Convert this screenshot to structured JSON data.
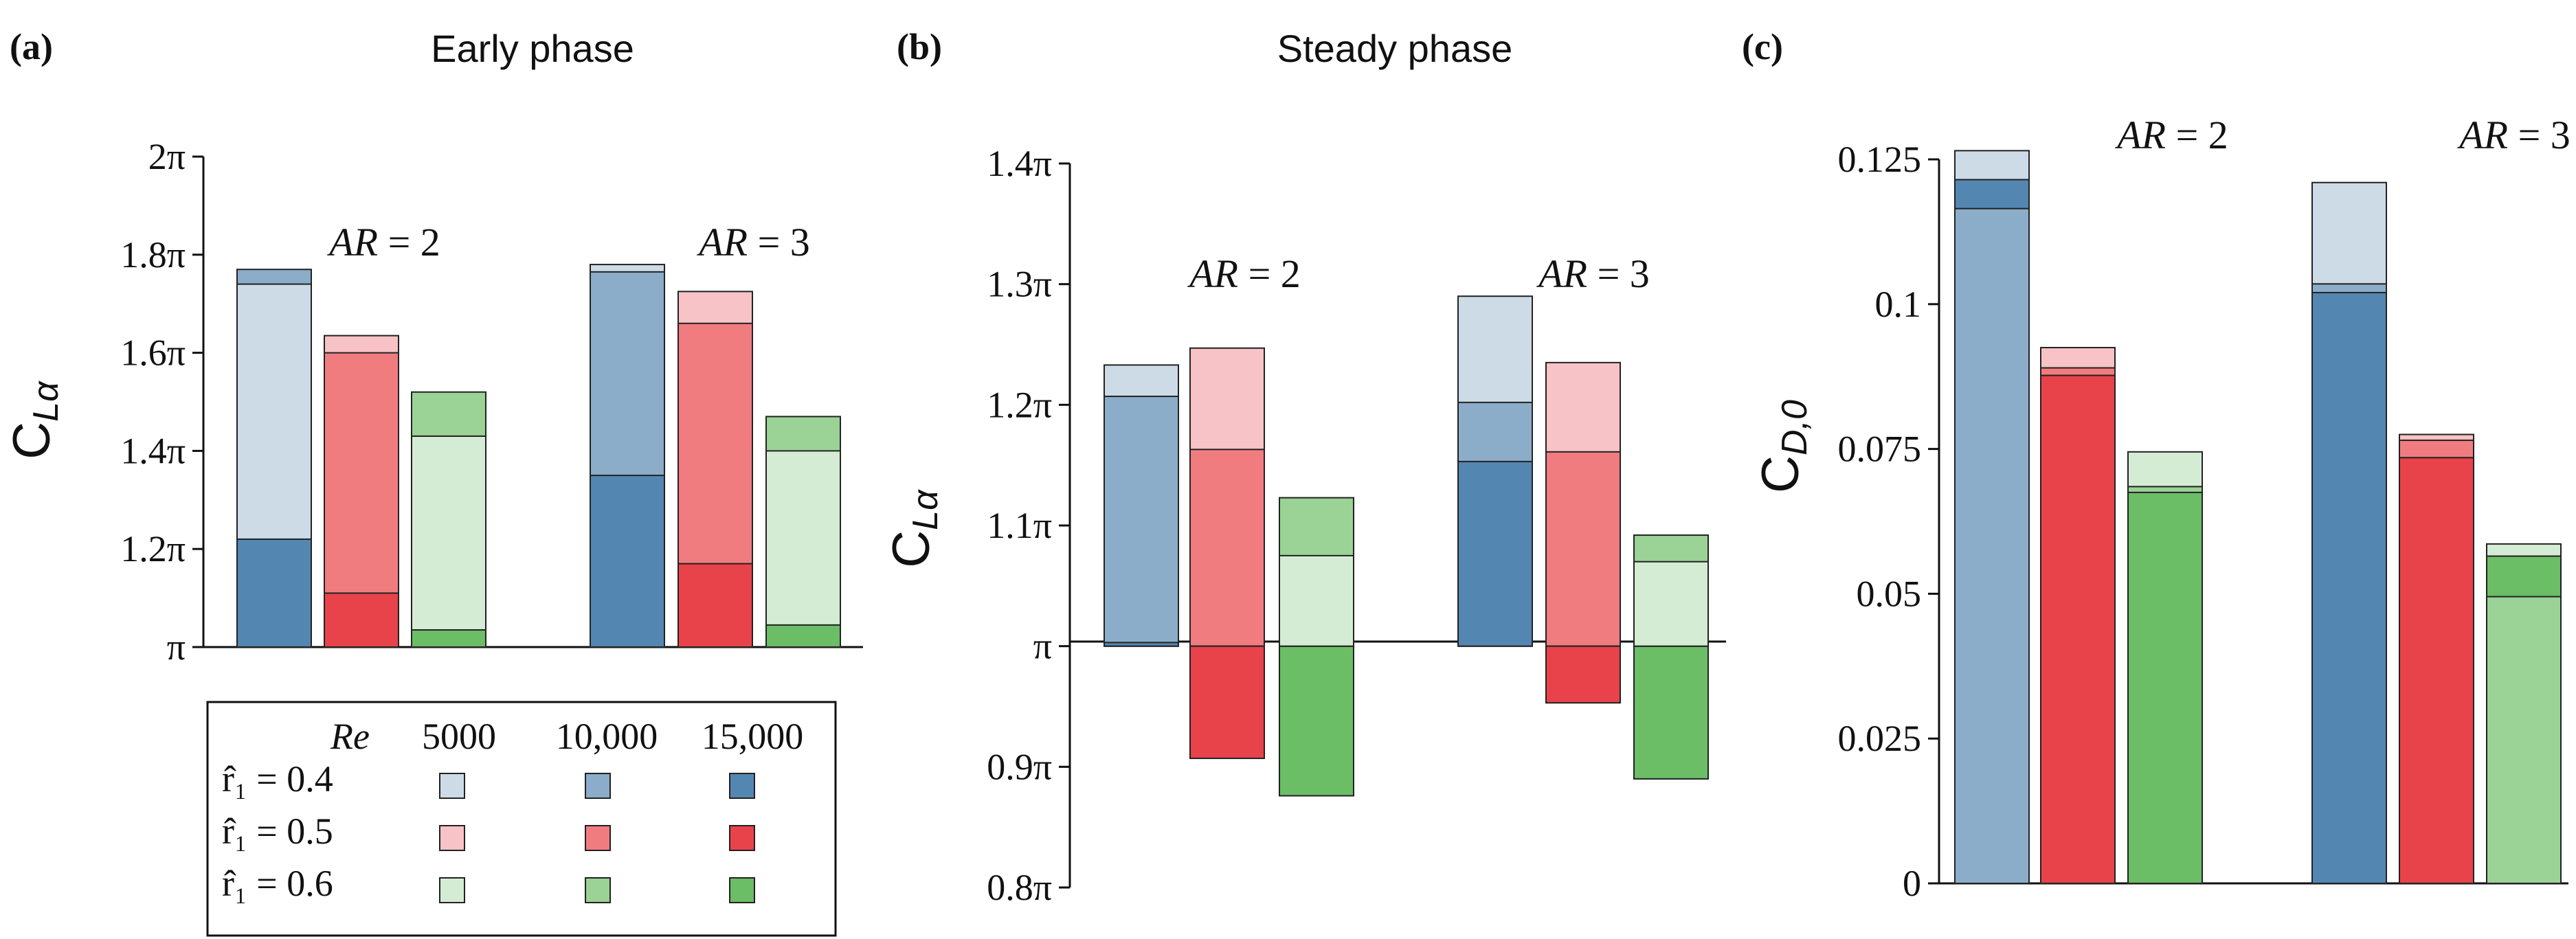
{
  "figure_labels": {
    "a": "(a)",
    "b": "(b)",
    "c": "(c)"
  },
  "legend": {
    "re_label": "Re",
    "columns": [
      "5000",
      "10,000",
      "15,000"
    ],
    "rows": [
      {
        "label": "r̂₁ = 0.4",
        "hue": "blue"
      },
      {
        "label": "r̂₁ = 0.5",
        "hue": "red"
      },
      {
        "label": "r̂₁ = 0.6",
        "hue": "green"
      }
    ]
  },
  "colors": {
    "blue": [
      "#cddbe7",
      "#8badc9",
      "#5486b2"
    ],
    "red": [
      "#f7c3c6",
      "#f07c80",
      "#e8434a"
    ],
    "green": [
      "#d5ecd4",
      "#9bd296",
      "#6bbd66"
    ]
  },
  "chart_data": [
    {
      "type": "bar",
      "panel": "(a)",
      "title": "Early phase",
      "ylabel": "C_Lα",
      "ylim": [
        1.0,
        2.0
      ],
      "yticks": [
        "π",
        "1.2π",
        "1.4π",
        "1.6π",
        "1.8π",
        "2π"
      ],
      "baseline": 1.0,
      "groups": [
        "AR = 2",
        "AR = 3"
      ],
      "series": [
        "r̂₁ = 0.4",
        "r̂₁ = 0.5",
        "r̂₁ = 0.6"
      ],
      "units": "multiples of π",
      "values": [
        [
          {
            "re5000": 1.74,
            "re10000": 1.77,
            "re15000": 1.22
          },
          {
            "re5000": 1.635,
            "re10000": 1.6,
            "re15000": 1.11
          },
          {
            "re5000": 1.43,
            "re10000": 1.52,
            "re15000": 1.035
          }
        ],
        [
          {
            "re5000": 1.78,
            "re10000": 1.765,
            "re15000": 1.35
          },
          {
            "re5000": 1.725,
            "re10000": 1.66,
            "re15000": 1.17
          },
          {
            "re5000": 1.4,
            "re10000": 1.47,
            "re15000": 1.045
          }
        ]
      ]
    },
    {
      "type": "bar",
      "panel": "(b)",
      "title": "Steady phase",
      "ylabel": "C_Lα",
      "ylim": [
        0.8,
        1.4
      ],
      "yticks": [
        "0.8π",
        "0.9π",
        "π",
        "1.1π",
        "1.2π",
        "1.3π",
        "1.4π"
      ],
      "baseline": 1.0,
      "groups": [
        "AR = 2",
        "AR = 3"
      ],
      "series": [
        "r̂₁ = 0.4",
        "r̂₁ = 0.5",
        "r̂₁ = 0.6"
      ],
      "units": "multiples of π",
      "values": [
        [
          {
            "re5000": 1.233,
            "re10000": 1.207,
            "re15000": 1.003
          },
          {
            "re5000": 1.247,
            "re10000": 1.163,
            "re15000": 0.907
          },
          {
            "re5000": 1.075,
            "re10000": 1.123,
            "re15000": 0.876
          }
        ],
        [
          {
            "re5000": 1.29,
            "re10000": 1.202,
            "re15000": 1.153
          },
          {
            "re5000": 1.235,
            "re10000": 1.161,
            "re15000": 0.953
          },
          {
            "re5000": 1.07,
            "re10000": 1.092,
            "re15000": 0.89
          }
        ]
      ]
    },
    {
      "type": "bar",
      "panel": "(c)",
      "ylabel": "C_D,0",
      "ylim": [
        0,
        0.125
      ],
      "yticks": [
        "0",
        "0.025",
        "0.05",
        "0.075",
        "0.1",
        "0.125"
      ],
      "baseline": 0,
      "groups": [
        "AR = 2",
        "AR = 3"
      ],
      "series": [
        "r̂₁ = 0.4",
        "r̂₁ = 0.5",
        "r̂₁ = 0.6"
      ],
      "values": [
        [
          {
            "re5000": 0.1265,
            "re10000": 0.1165,
            "re15000": 0.1215
          },
          {
            "re5000": 0.0925,
            "re10000": 0.089,
            "re15000": 0.0877
          },
          {
            "re5000": 0.0745,
            "re10000": 0.0685,
            "re15000": 0.0675
          }
        ],
        [
          {
            "re5000": 0.121,
            "re10000": 0.1035,
            "re15000": 0.102
          },
          {
            "re5000": 0.0775,
            "re10000": 0.0765,
            "re15000": 0.0735
          },
          {
            "re5000": 0.0586,
            "re10000": 0.0495,
            "re15000": 0.0565
          }
        ]
      ]
    }
  ]
}
